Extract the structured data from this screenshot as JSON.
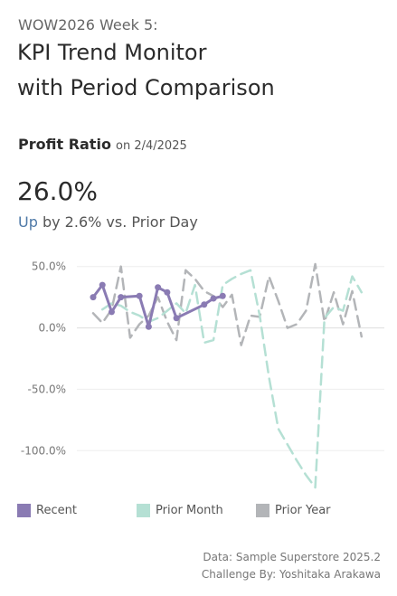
{
  "header": {
    "subtitle": "WOW2026 Week 5:",
    "title_line1": "KPI Trend Monitor",
    "title_line2": "with Period Comparison"
  },
  "metric": {
    "name": "Profit Ratio",
    "date_text": "on 2/4/2025",
    "value": "26.0%",
    "direction": "Up",
    "change_text": "by 2.6% vs. Prior Day"
  },
  "chart_data": {
    "type": "line",
    "ylim": [
      -130,
      52
    ],
    "y_ticks": [
      "50.0%",
      "0.0%",
      "-50.0%",
      "-100.0%"
    ],
    "y_tick_values": [
      50,
      0,
      -50,
      -100
    ],
    "series": [
      {
        "name": "Recent",
        "color": "#8a7bb3",
        "style": "solid-markers",
        "x": [
          1,
          2,
          3,
          4,
          6,
          7,
          8,
          9,
          10,
          13,
          14,
          15
        ],
        "values": [
          25,
          35,
          13,
          25,
          26,
          1,
          33,
          29,
          8,
          19,
          24,
          26
        ]
      },
      {
        "name": "Prior Month",
        "color": "#b5e0d4",
        "style": "dashed",
        "x": [
          2,
          3,
          4,
          5,
          6,
          7,
          8,
          9,
          10,
          11,
          12,
          13,
          14,
          15,
          16,
          17,
          18,
          19,
          20,
          21,
          22,
          23,
          24,
          25,
          26,
          27,
          28,
          29,
          30
        ],
        "values": [
          15,
          20,
          18,
          13,
          10,
          5,
          8,
          14,
          20,
          12,
          35,
          -12,
          -10,
          35,
          40,
          44,
          47,
          10,
          -40,
          -82,
          -95,
          -108,
          -120,
          -130,
          8,
          17,
          14,
          42,
          29
        ]
      },
      {
        "name": "Prior Year",
        "color": "#b3b5b8",
        "style": "dashed",
        "x": [
          1,
          2,
          3,
          4,
          5,
          6,
          7,
          8,
          9,
          10,
          11,
          12,
          13,
          14,
          15,
          16,
          17,
          18,
          19,
          20,
          21,
          22,
          23,
          24,
          25,
          26,
          27,
          28,
          29,
          30,
          31
        ],
        "values": [
          12,
          4,
          15,
          50,
          -8,
          3,
          10,
          25,
          5,
          -10,
          47,
          40,
          30,
          26,
          17,
          27,
          -14,
          10,
          9,
          42,
          22,
          0,
          3,
          14,
          52,
          5,
          29,
          3,
          30,
          -7,
          null
        ]
      }
    ],
    "legend": [
      {
        "label": "Recent",
        "color": "#8a7bb3"
      },
      {
        "label": "Prior Month",
        "color": "#b5e0d4"
      },
      {
        "label": "Prior Year",
        "color": "#b3b5b8"
      }
    ]
  },
  "footer": {
    "data_source": "Data: Sample Superstore 2025.2",
    "challenge": "Challenge By: Yoshitaka Arakawa"
  }
}
